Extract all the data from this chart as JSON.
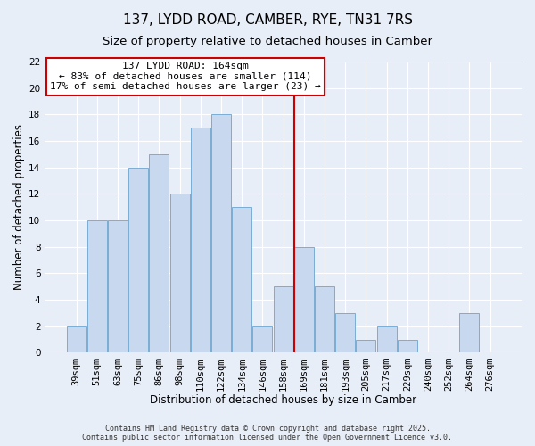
{
  "title": "137, LYDD ROAD, CAMBER, RYE, TN31 7RS",
  "subtitle": "Size of property relative to detached houses in Camber",
  "xlabel": "Distribution of detached houses by size in Camber",
  "ylabel": "Number of detached properties",
  "bar_labels": [
    "39sqm",
    "51sqm",
    "63sqm",
    "75sqm",
    "86sqm",
    "98sqm",
    "110sqm",
    "122sqm",
    "134sqm",
    "146sqm",
    "158sqm",
    "169sqm",
    "181sqm",
    "193sqm",
    "205sqm",
    "217sqm",
    "229sqm",
    "240sqm",
    "252sqm",
    "264sqm",
    "276sqm"
  ],
  "bar_values": [
    2,
    10,
    10,
    14,
    15,
    12,
    17,
    18,
    11,
    2,
    5,
    8,
    5,
    3,
    1,
    2,
    1,
    0,
    0,
    3,
    0
  ],
  "bar_color": "#c8d8ef",
  "bar_edge_color": "#7aadd4",
  "reference_line_label": "137 LYDD ROAD: 164sqm",
  "annotation_line1": "← 83% of detached houses are smaller (114)",
  "annotation_line2": "17% of semi-detached houses are larger (23) →",
  "annotation_box_color": "#ffffff",
  "annotation_box_edge_color": "#cc0000",
  "vline_color": "#cc0000",
  "ylim": [
    0,
    22
  ],
  "background_color": "#e8eef8",
  "grid_color": "#ffffff",
  "footer_line1": "Contains HM Land Registry data © Crown copyright and database right 2025.",
  "footer_line2": "Contains public sector information licensed under the Open Government Licence v3.0.",
  "title_fontsize": 11,
  "subtitle_fontsize": 9.5,
  "axis_label_fontsize": 8.5,
  "tick_fontsize": 7.5,
  "annotation_fontsize": 8,
  "footer_fontsize": 6
}
